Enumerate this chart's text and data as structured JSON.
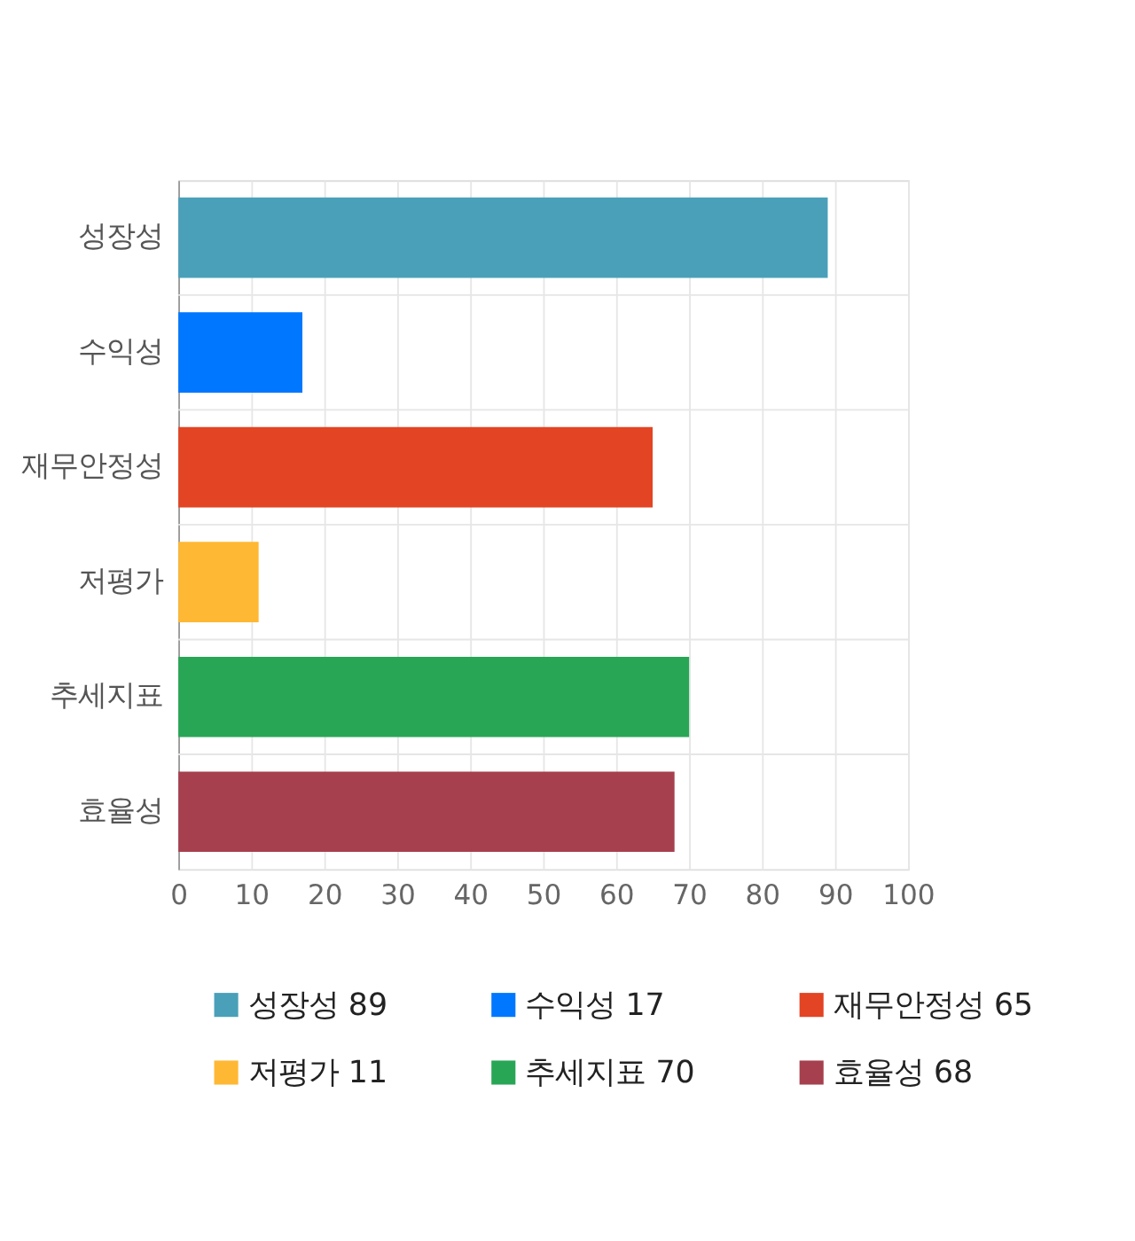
{
  "chart_data": {
    "type": "bar",
    "orientation": "horizontal",
    "stacked": true,
    "categories": [
      "성장성",
      "수익성",
      "재무안정성",
      "저평가",
      "추세지표",
      "효율성"
    ],
    "series": [
      {
        "name": "성장성 89",
        "color": "#4aa0b8",
        "values": [
          89,
          null,
          null,
          null,
          null,
          null
        ]
      },
      {
        "name": "수익성 17",
        "color": "#0077ff",
        "values": [
          null,
          17,
          null,
          null,
          null,
          null
        ]
      },
      {
        "name": "재무안정성 65",
        "color": "#e24424",
        "values": [
          null,
          null,
          65,
          null,
          null,
          null
        ]
      },
      {
        "name": "저평가 11",
        "color": "#ffb833",
        "values": [
          null,
          null,
          null,
          11,
          null,
          null
        ]
      },
      {
        "name": "추세지표 70",
        "color": "#28a655",
        "values": [
          null,
          null,
          null,
          null,
          70,
          null
        ]
      },
      {
        "name": "효율성 68",
        "color": "#a6404e",
        "values": [
          null,
          null,
          null,
          null,
          null,
          68
        ]
      }
    ],
    "xlim": [
      0,
      100
    ],
    "xticks": [
      0,
      10,
      20,
      30,
      40,
      50,
      60,
      70,
      80,
      90,
      100
    ],
    "grid": true,
    "legend": "bottom"
  }
}
